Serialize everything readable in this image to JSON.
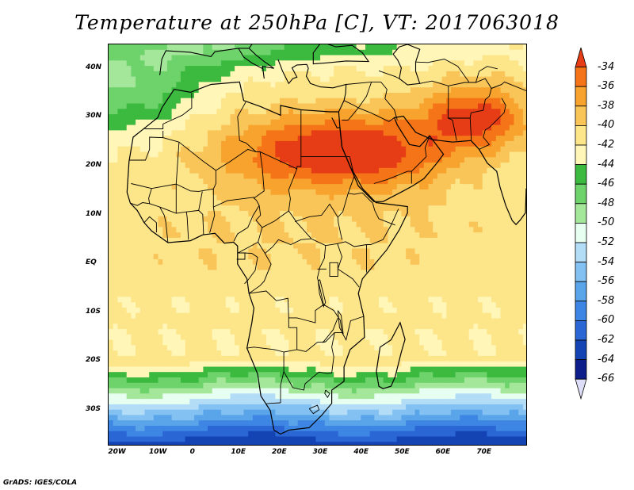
{
  "title": "Temperature at 250hPa [C], VT: 2017063018",
  "credit": "GrADS: IGES/COLA",
  "x_ticks": [
    {
      "label": "20W",
      "lon": -20
    },
    {
      "label": "10W",
      "lon": -10
    },
    {
      "label": "0",
      "lon": 0
    },
    {
      "label": "10E",
      "lon": 10
    },
    {
      "label": "20E",
      "lon": 20
    },
    {
      "label": "30E",
      "lon": 30
    },
    {
      "label": "40E",
      "lon": 40
    },
    {
      "label": "50E",
      "lon": 50
    },
    {
      "label": "60E",
      "lon": 60
    },
    {
      "label": "70E",
      "lon": 70
    }
  ],
  "y_ticks": [
    {
      "label": "40N",
      "lat": 40
    },
    {
      "label": "30N",
      "lat": 30
    },
    {
      "label": "20N",
      "lat": 20
    },
    {
      "label": "10N",
      "lat": 10
    },
    {
      "label": "EQ",
      "lat": 0
    },
    {
      "label": "10S",
      "lat": -10
    },
    {
      "label": "20S",
      "lat": -20
    },
    {
      "label": "30S",
      "lat": -30
    }
  ],
  "colorbar": {
    "labels": [
      "-34",
      "-36",
      "-38",
      "-40",
      "-42",
      "-44",
      "-46",
      "-48",
      "-50",
      "-52",
      "-54",
      "-56",
      "-58",
      "-60",
      "-62",
      "-64",
      "-66"
    ],
    "colors": [
      "#e63d16",
      "#f47417",
      "#f7a32d",
      "#f9c558",
      "#fde58a",
      "#fff6b8",
      "#3cba3f",
      "#6dd36a",
      "#a4e79a",
      "#e6fff0",
      "#b3dcf7",
      "#82c1f2",
      "#5aa4ea",
      "#3d86e3",
      "#2a66d4",
      "#1443b3",
      "#0d1d8a",
      "#ddddf7"
    ]
  },
  "map": {
    "extent": {
      "lon_min": -22,
      "lon_max": 80,
      "lat_min": -37,
      "lat_max": 45
    },
    "color_ramp": [
      "#1443b3",
      "#2a66d4",
      "#3d86e3",
      "#5aa4ea",
      "#82c1f2",
      "#b3dcf7",
      "#e6fff0",
      "#a4e79a",
      "#6dd36a",
      "#3cba3f",
      "#fff6b8",
      "#fde58a",
      "#f9c558",
      "#f7a32d",
      "#f47417",
      "#e63d16"
    ]
  }
}
